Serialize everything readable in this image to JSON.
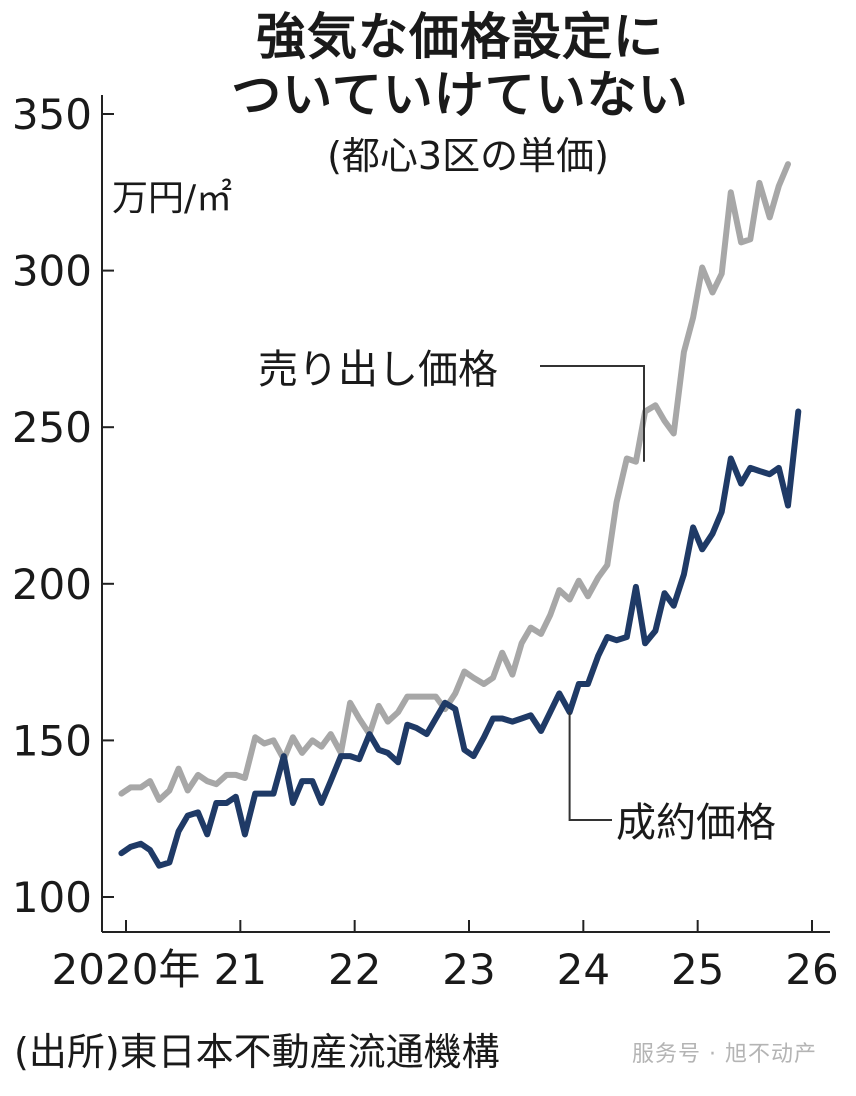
{
  "title_line1": "強気な価格設定に",
  "title_line2": "ついていけていない",
  "subtitle": "(都心3区の単価)",
  "unit": "万円/㎡",
  "source": "(出所)東日本不動産流通機構",
  "watermark": "服务号 · 旭不动产",
  "colors": {
    "asking": "#a7a7a7",
    "contract": "#1f3a66",
    "axis": "#222222"
  },
  "chart_data": {
    "type": "line",
    "title": "強気な価格設定に ついていけていない",
    "subtitle": "(都心3区の単価)",
    "ylabel": "万円/㎡",
    "ylim": [
      100,
      350
    ],
    "yticks": [
      100,
      150,
      200,
      250,
      300,
      350
    ],
    "xlim": [
      2020,
      2026
    ],
    "xticks": [
      {
        "value": 2020,
        "label": "2020年"
      },
      {
        "value": 2021,
        "label": "21"
      },
      {
        "value": 2022,
        "label": "22"
      },
      {
        "value": 2023,
        "label": "23"
      },
      {
        "value": 2024,
        "label": "24"
      },
      {
        "value": 2025,
        "label": "25"
      },
      {
        "value": 2026,
        "label": "26"
      }
    ],
    "grid": false,
    "legend": "inline labels",
    "series": [
      {
        "name": "売り出し価格",
        "values": [
          [
            2019.96,
            133
          ],
          [
            2020.04,
            135
          ],
          [
            2020.13,
            135
          ],
          [
            2020.21,
            137
          ],
          [
            2020.29,
            131
          ],
          [
            2020.38,
            134
          ],
          [
            2020.46,
            141
          ],
          [
            2020.54,
            134
          ],
          [
            2020.63,
            139
          ],
          [
            2020.71,
            137
          ],
          [
            2020.79,
            136
          ],
          [
            2020.88,
            139
          ],
          [
            2020.96,
            139
          ],
          [
            2021.04,
            138
          ],
          [
            2021.13,
            151
          ],
          [
            2021.21,
            149
          ],
          [
            2021.29,
            150
          ],
          [
            2021.38,
            144
          ],
          [
            2021.46,
            151
          ],
          [
            2021.54,
            146
          ],
          [
            2021.63,
            150
          ],
          [
            2021.71,
            148
          ],
          [
            2021.79,
            152
          ],
          [
            2021.88,
            146
          ],
          [
            2021.96,
            162
          ],
          [
            2022.04,
            157
          ],
          [
            2022.13,
            152
          ],
          [
            2022.21,
            161
          ],
          [
            2022.29,
            156
          ],
          [
            2022.38,
            159
          ],
          [
            2022.46,
            164
          ],
          [
            2022.54,
            164
          ],
          [
            2022.63,
            164
          ],
          [
            2022.71,
            164
          ],
          [
            2022.79,
            160
          ],
          [
            2022.88,
            165
          ],
          [
            2022.96,
            172
          ],
          [
            2023.04,
            170
          ],
          [
            2023.13,
            168
          ],
          [
            2023.21,
            170
          ],
          [
            2023.29,
            178
          ],
          [
            2023.38,
            171
          ],
          [
            2023.46,
            181
          ],
          [
            2023.54,
            186
          ],
          [
            2023.63,
            184
          ],
          [
            2023.71,
            190
          ],
          [
            2023.79,
            198
          ],
          [
            2023.88,
            195
          ],
          [
            2023.96,
            201
          ],
          [
            2024.04,
            196
          ],
          [
            2024.13,
            202
          ],
          [
            2024.21,
            206
          ],
          [
            2024.29,
            226
          ],
          [
            2024.38,
            240
          ],
          [
            2024.46,
            239
          ],
          [
            2024.54,
            255
          ],
          [
            2024.63,
            257
          ],
          [
            2024.71,
            252
          ],
          [
            2024.79,
            248
          ],
          [
            2024.88,
            274
          ],
          [
            2024.96,
            285
          ],
          [
            2025.04,
            301
          ],
          [
            2025.13,
            293
          ],
          [
            2025.21,
            299
          ],
          [
            2025.29,
            325
          ],
          [
            2025.38,
            309
          ],
          [
            2025.46,
            310
          ],
          [
            2025.54,
            328
          ],
          [
            2025.63,
            317
          ],
          [
            2025.71,
            327
          ],
          [
            2025.79,
            334
          ]
        ]
      },
      {
        "name": "成約価格",
        "values": [
          [
            2019.96,
            114
          ],
          [
            2020.04,
            116
          ],
          [
            2020.13,
            117
          ],
          [
            2020.21,
            115
          ],
          [
            2020.29,
            110
          ],
          [
            2020.38,
            111
          ],
          [
            2020.46,
            121
          ],
          [
            2020.54,
            126
          ],
          [
            2020.63,
            127
          ],
          [
            2020.71,
            120
          ],
          [
            2020.79,
            130
          ],
          [
            2020.88,
            130
          ],
          [
            2020.96,
            132
          ],
          [
            2021.04,
            120
          ],
          [
            2021.13,
            133
          ],
          [
            2021.21,
            133
          ],
          [
            2021.29,
            133
          ],
          [
            2021.38,
            145
          ],
          [
            2021.46,
            130
          ],
          [
            2021.54,
            137
          ],
          [
            2021.63,
            137
          ],
          [
            2021.71,
            130
          ],
          [
            2021.79,
            137
          ],
          [
            2021.88,
            145
          ],
          [
            2021.96,
            145
          ],
          [
            2022.04,
            144
          ],
          [
            2022.13,
            152
          ],
          [
            2022.21,
            147
          ],
          [
            2022.29,
            146
          ],
          [
            2022.38,
            143
          ],
          [
            2022.46,
            155
          ],
          [
            2022.54,
            154
          ],
          [
            2022.63,
            152
          ],
          [
            2022.71,
            157
          ],
          [
            2022.79,
            162
          ],
          [
            2022.88,
            160
          ],
          [
            2022.96,
            147
          ],
          [
            2023.04,
            145
          ],
          [
            2023.13,
            151
          ],
          [
            2023.21,
            157
          ],
          [
            2023.29,
            157
          ],
          [
            2023.38,
            156
          ],
          [
            2023.46,
            157
          ],
          [
            2023.54,
            158
          ],
          [
            2023.63,
            153
          ],
          [
            2023.71,
            159
          ],
          [
            2023.79,
            165
          ],
          [
            2023.88,
            159
          ],
          [
            2023.96,
            168
          ],
          [
            2024.04,
            168
          ],
          [
            2024.13,
            177
          ],
          [
            2024.21,
            183
          ],
          [
            2024.29,
            182
          ],
          [
            2024.38,
            183
          ],
          [
            2024.46,
            199
          ],
          [
            2024.54,
            181
          ],
          [
            2024.63,
            185
          ],
          [
            2024.71,
            197
          ],
          [
            2024.79,
            193
          ],
          [
            2024.88,
            203
          ],
          [
            2024.96,
            218
          ],
          [
            2025.04,
            211
          ],
          [
            2025.13,
            216
          ],
          [
            2025.21,
            223
          ],
          [
            2025.29,
            240
          ],
          [
            2025.38,
            232
          ],
          [
            2025.46,
            237
          ],
          [
            2025.54,
            236
          ],
          [
            2025.63,
            235
          ],
          [
            2025.71,
            237
          ],
          [
            2025.79,
            225
          ],
          [
            2025.88,
            255
          ]
        ]
      }
    ]
  }
}
